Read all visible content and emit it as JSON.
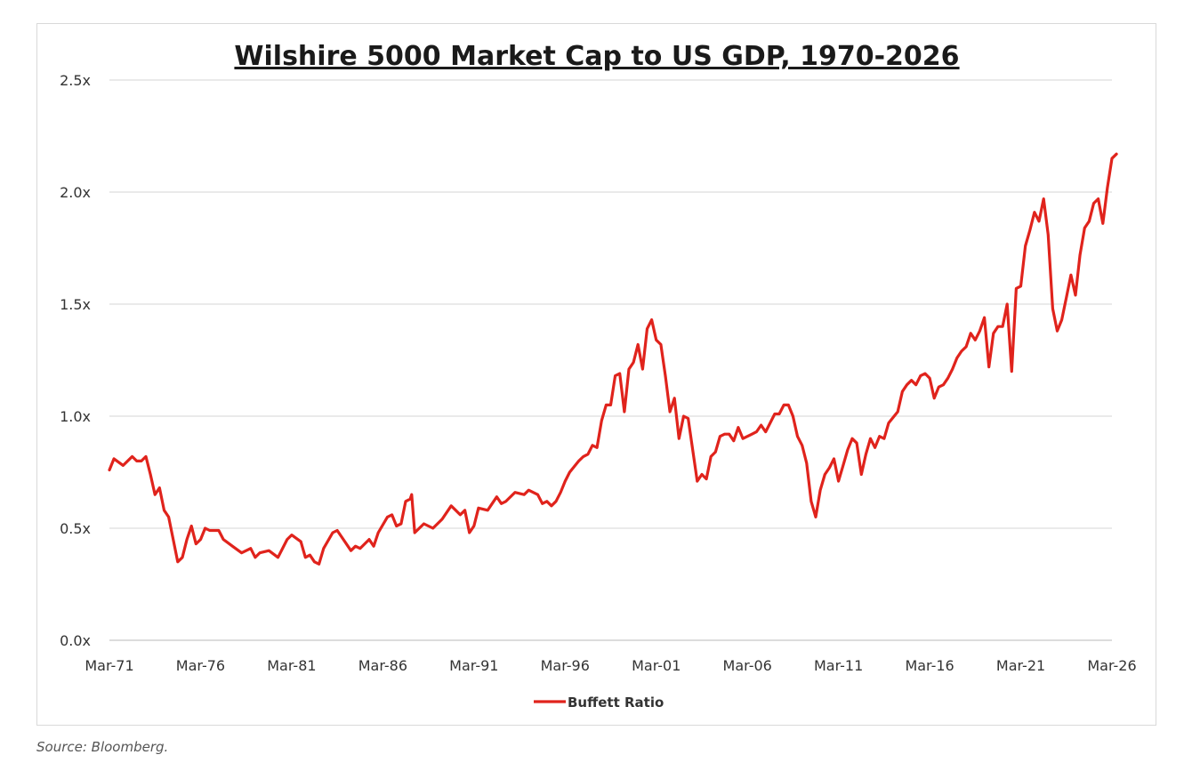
{
  "source": "Source: Bloomberg.",
  "chart_data": {
    "type": "line",
    "title": "Wilshire 5000 Market Cap to US GDP, 1970-2026",
    "xlabel": "",
    "ylabel": "",
    "x_start": "Mar-71",
    "x_end": "Mar-26",
    "ylim": [
      0,
      2.5
    ],
    "y_ticks": [
      "0.0x",
      "0.5x",
      "1.0x",
      "1.5x",
      "2.0x",
      "2.5x"
    ],
    "x_ticks": [
      "Mar-71",
      "Mar-76",
      "Mar-81",
      "Mar-86",
      "Mar-91",
      "Mar-96",
      "Mar-01",
      "Mar-06",
      "Mar-11",
      "Mar-16",
      "Mar-21",
      "Mar-26"
    ],
    "grid": true,
    "legend_position": "bottom-center",
    "series": [
      {
        "name": "Buffett Ratio",
        "color": "#e0231c",
        "points": [
          [
            "Mar-71",
            0.76
          ],
          [
            "Jun-71",
            0.81
          ],
          [
            "Dec-71",
            0.78
          ],
          [
            "Jun-72",
            0.82
          ],
          [
            "Sep-72",
            0.8
          ],
          [
            "Dec-72",
            0.8
          ],
          [
            "Mar-73",
            0.82
          ],
          [
            "Jun-73",
            0.74
          ],
          [
            "Sep-73",
            0.65
          ],
          [
            "Dec-73",
            0.68
          ],
          [
            "Mar-74",
            0.58
          ],
          [
            "Jun-74",
            0.55
          ],
          [
            "Sep-74",
            0.45
          ],
          [
            "Dec-74",
            0.35
          ],
          [
            "Mar-75",
            0.37
          ],
          [
            "Jun-75",
            0.45
          ],
          [
            "Sep-75",
            0.51
          ],
          [
            "Dec-75",
            0.43
          ],
          [
            "Mar-76",
            0.45
          ],
          [
            "Jun-76",
            0.5
          ],
          [
            "Sep-76",
            0.49
          ],
          [
            "Dec-76",
            0.49
          ],
          [
            "Mar-77",
            0.49
          ],
          [
            "Jun-77",
            0.45
          ],
          [
            "Dec-77",
            0.42
          ],
          [
            "Jun-78",
            0.39
          ],
          [
            "Dec-78",
            0.41
          ],
          [
            "Mar-79",
            0.37
          ],
          [
            "Jun-79",
            0.39
          ],
          [
            "Dec-79",
            0.4
          ],
          [
            "Jun-80",
            0.37
          ],
          [
            "Dec-80",
            0.45
          ],
          [
            "Mar-81",
            0.47
          ],
          [
            "Sep-81",
            0.44
          ],
          [
            "Dec-81",
            0.37
          ],
          [
            "Mar-82",
            0.38
          ],
          [
            "Jun-82",
            0.35
          ],
          [
            "Sep-82",
            0.34
          ],
          [
            "Dec-82",
            0.41
          ],
          [
            "Jun-83",
            0.48
          ],
          [
            "Sep-83",
            0.49
          ],
          [
            "Dec-83",
            0.46
          ],
          [
            "Jun-84",
            0.4
          ],
          [
            "Sep-84",
            0.42
          ],
          [
            "Dec-84",
            0.41
          ],
          [
            "Jun-85",
            0.45
          ],
          [
            "Sep-85",
            0.42
          ],
          [
            "Dec-85",
            0.48
          ],
          [
            "Jun-86",
            0.55
          ],
          [
            "Sep-86",
            0.56
          ],
          [
            "Dec-86",
            0.51
          ],
          [
            "Mar-87",
            0.52
          ],
          [
            "Jun-87",
            0.62
          ],
          [
            "Sep-87",
            0.63
          ],
          [
            "Oct-87",
            0.65
          ],
          [
            "Dec-87",
            0.48
          ],
          [
            "Jun-88",
            0.52
          ],
          [
            "Dec-88",
            0.5
          ],
          [
            "Jun-89",
            0.54
          ],
          [
            "Dec-89",
            0.6
          ],
          [
            "Mar-90",
            0.58
          ],
          [
            "Jun-90",
            0.56
          ],
          [
            "Sep-90",
            0.58
          ],
          [
            "Dec-90",
            0.48
          ],
          [
            "Mar-91",
            0.51
          ],
          [
            "Jun-91",
            0.59
          ],
          [
            "Dec-91",
            0.58
          ],
          [
            "Jun-92",
            0.64
          ],
          [
            "Sep-92",
            0.61
          ],
          [
            "Dec-92",
            0.62
          ],
          [
            "Jun-93",
            0.66
          ],
          [
            "Dec-93",
            0.65
          ],
          [
            "Mar-94",
            0.67
          ],
          [
            "Sep-94",
            0.65
          ],
          [
            "Dec-94",
            0.61
          ],
          [
            "Mar-95",
            0.62
          ],
          [
            "Jun-95",
            0.6
          ],
          [
            "Sep-95",
            0.62
          ],
          [
            "Dec-95",
            0.66
          ],
          [
            "Mar-96",
            0.71
          ],
          [
            "Jun-96",
            0.75
          ],
          [
            "Dec-96",
            0.8
          ],
          [
            "Mar-97",
            0.82
          ],
          [
            "Jun-97",
            0.83
          ],
          [
            "Sep-97",
            0.87
          ],
          [
            "Dec-97",
            0.86
          ],
          [
            "Mar-98",
            0.98
          ],
          [
            "Jun-98",
            1.05
          ],
          [
            "Sep-98",
            1.05
          ],
          [
            "Dec-98",
            1.18
          ],
          [
            "Mar-99",
            1.19
          ],
          [
            "Jun-99",
            1.02
          ],
          [
            "Sep-99",
            1.21
          ],
          [
            "Dec-99",
            1.24
          ],
          [
            "Mar-00",
            1.32
          ],
          [
            "Jun-00",
            1.21
          ],
          [
            "Sep-00",
            1.39
          ],
          [
            "Dec-00",
            1.43
          ],
          [
            "Mar-01",
            1.34
          ],
          [
            "Jun-01",
            1.32
          ],
          [
            "Sep-01",
            1.18
          ],
          [
            "Dec-01",
            1.02
          ],
          [
            "Mar-02",
            1.08
          ],
          [
            "Jun-02",
            0.9
          ],
          [
            "Sep-02",
            1.0
          ],
          [
            "Dec-02",
            0.99
          ],
          [
            "Jun-03",
            0.71
          ],
          [
            "Sep-03",
            0.74
          ],
          [
            "Dec-03",
            0.72
          ],
          [
            "Mar-04",
            0.82
          ],
          [
            "Jun-04",
            0.84
          ],
          [
            "Sep-04",
            0.91
          ],
          [
            "Dec-04",
            0.92
          ],
          [
            "Mar-05",
            0.92
          ],
          [
            "Jun-05",
            0.89
          ],
          [
            "Sep-05",
            0.95
          ],
          [
            "Dec-05",
            0.9
          ],
          [
            "Jun-06",
            0.92
          ],
          [
            "Sep-06",
            0.93
          ],
          [
            "Dec-06",
            0.96
          ],
          [
            "Mar-07",
            0.93
          ],
          [
            "Jun-07",
            0.97
          ],
          [
            "Sep-07",
            1.01
          ],
          [
            "Dec-07",
            1.01
          ],
          [
            "Mar-08",
            1.05
          ],
          [
            "Jun-08",
            1.05
          ],
          [
            "Sep-08",
            1.0
          ],
          [
            "Dec-08",
            0.91
          ],
          [
            "Mar-09",
            0.87
          ],
          [
            "Jun-09",
            0.79
          ],
          [
            "Sep-09",
            0.62
          ],
          [
            "Dec-09",
            0.55
          ],
          [
            "Mar-10",
            0.67
          ],
          [
            "Jun-10",
            0.74
          ],
          [
            "Sep-10",
            0.77
          ],
          [
            "Dec-10",
            0.81
          ],
          [
            "Mar-11",
            0.71
          ],
          [
            "Jun-11",
            0.78
          ],
          [
            "Sep-11",
            0.85
          ],
          [
            "Dec-11",
            0.9
          ],
          [
            "Mar-12",
            0.88
          ],
          [
            "Jun-12",
            0.74
          ],
          [
            "Sep-12",
            0.83
          ],
          [
            "Dec-12",
            0.9
          ],
          [
            "Mar-13",
            0.86
          ],
          [
            "Jun-13",
            0.91
          ],
          [
            "Sep-13",
            0.9
          ],
          [
            "Dec-13",
            0.97
          ],
          [
            "Jun-14",
            1.02
          ],
          [
            "Sep-14",
            1.11
          ],
          [
            "Dec-14",
            1.14
          ],
          [
            "Mar-15",
            1.16
          ],
          [
            "Jun-15",
            1.14
          ],
          [
            "Sep-15",
            1.18
          ],
          [
            "Dec-15",
            1.19
          ],
          [
            "Mar-16",
            1.17
          ],
          [
            "Jun-16",
            1.08
          ],
          [
            "Sep-16",
            1.13
          ],
          [
            "Dec-16",
            1.14
          ],
          [
            "Mar-17",
            1.17
          ],
          [
            "Jun-17",
            1.21
          ],
          [
            "Sep-17",
            1.26
          ],
          [
            "Dec-17",
            1.29
          ],
          [
            "Mar-18",
            1.31
          ],
          [
            "Jun-18",
            1.37
          ],
          [
            "Sep-18",
            1.34
          ],
          [
            "Dec-18",
            1.38
          ],
          [
            "Mar-19",
            1.44
          ],
          [
            "Jun-19",
            1.22
          ],
          [
            "Sep-19",
            1.37
          ],
          [
            "Dec-19",
            1.4
          ],
          [
            "Mar-20",
            1.4
          ],
          [
            "Jun-20",
            1.5
          ],
          [
            "Sep-20",
            1.2
          ],
          [
            "Dec-20",
            1.57
          ],
          [
            "Mar-21",
            1.58
          ],
          [
            "Jun-21",
            1.76
          ],
          [
            "Sep-21",
            1.83
          ],
          [
            "Dec-21",
            1.91
          ],
          [
            "Mar-22",
            1.87
          ],
          [
            "Jun-22",
            1.97
          ],
          [
            "Sep-22",
            1.81
          ],
          [
            "Dec-22",
            1.48
          ],
          [
            "Mar-23",
            1.38
          ],
          [
            "Jun-23",
            1.43
          ],
          [
            "Sep-23",
            1.53
          ],
          [
            "Dec-23",
            1.63
          ],
          [
            "Mar-24",
            1.54
          ],
          [
            "Jun-24",
            1.72
          ],
          [
            "Sep-24",
            1.84
          ],
          [
            "Dec-24",
            1.87
          ],
          [
            "Mar-25",
            1.95
          ],
          [
            "Jun-25",
            1.97
          ],
          [
            "Sep-25",
            1.86
          ],
          [
            "Dec-25",
            2.02
          ],
          [
            "Mar-26",
            2.15
          ],
          [
            "Jun-26",
            2.17
          ]
        ]
      }
    ]
  }
}
